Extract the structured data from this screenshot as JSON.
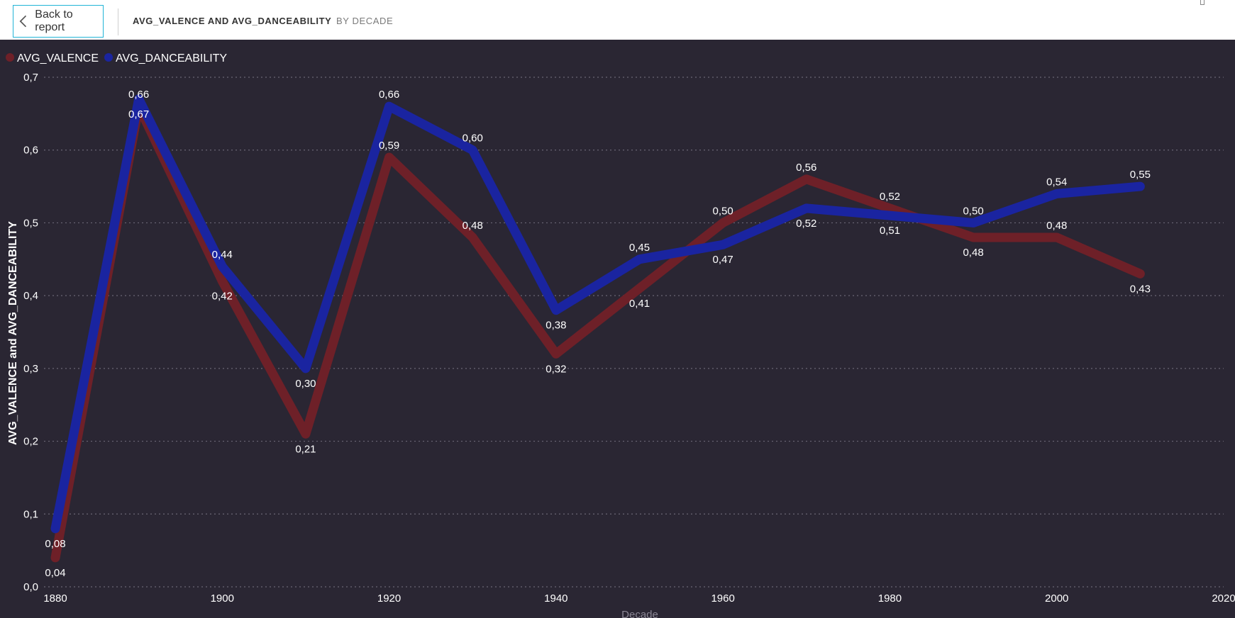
{
  "header": {
    "back_label": "Back to report",
    "title": "AVG_VALENCE AND AVG_DANCEABILITY",
    "subtitle": "BY DECADE"
  },
  "colors": {
    "background": "#2a2633",
    "valence": "#6e2028",
    "danceability": "#1a24a0",
    "text": "#ffffff",
    "accent": "#21b4d6"
  },
  "chart_data": {
    "type": "line",
    "title": "AVG_VALENCE AND AVG_DANCEABILITY BY DECADE",
    "xlabel": "Decade",
    "ylabel": "AVG_VALENCE and AVG_DANCEABILITY",
    "x": [
      1880,
      1890,
      1900,
      1910,
      1920,
      1930,
      1940,
      1950,
      1960,
      1970,
      1980,
      1990,
      2000,
      2010
    ],
    "xticks": [
      "1880",
      "1900",
      "1920",
      "1940",
      "1960",
      "1980",
      "2000",
      "2020"
    ],
    "xlim": [
      1880,
      2020
    ],
    "yticks": [
      "0,0",
      "0,1",
      "0,2",
      "0,3",
      "0,4",
      "0,5",
      "0,6",
      "0,7"
    ],
    "ylim": [
      0,
      0.7
    ],
    "grid": true,
    "legend_position": "top-left",
    "series": [
      {
        "name": "AVG_VALENCE",
        "values": [
          0.04,
          0.66,
          0.42,
          0.21,
          0.59,
          0.48,
          0.32,
          0.41,
          0.5,
          0.56,
          0.52,
          0.48,
          0.48,
          0.43
        ],
        "labels": [
          "0,04",
          "0,66",
          "0,42",
          "0,21",
          "0,59",
          "0,48",
          "0,32",
          "0,41",
          "0,50",
          "0,56",
          "0,52",
          "0,48",
          "0,48",
          "0,43"
        ],
        "label_pos": [
          "below",
          "above",
          "below",
          "below",
          "above",
          "above",
          "below",
          "below",
          "above",
          "above",
          "above",
          "below",
          "above",
          "below"
        ]
      },
      {
        "name": "AVG_DANCEABILITY",
        "values": [
          0.08,
          0.67,
          0.44,
          0.3,
          0.66,
          0.6,
          0.38,
          0.45,
          0.47,
          0.52,
          0.51,
          0.5,
          0.54,
          0.55
        ],
        "labels": [
          "0,08",
          "0,67",
          "0,44",
          "0,30",
          "0,66",
          "0,60",
          "0,38",
          "0,45",
          "0,47",
          "0,52",
          "0,51",
          "0,50",
          "0,54",
          "0,55"
        ],
        "label_pos": [
          "below",
          "below",
          "above",
          "below",
          "above",
          "above",
          "below",
          "above",
          "below",
          "below",
          "below",
          "above",
          "above",
          "above"
        ]
      }
    ]
  }
}
